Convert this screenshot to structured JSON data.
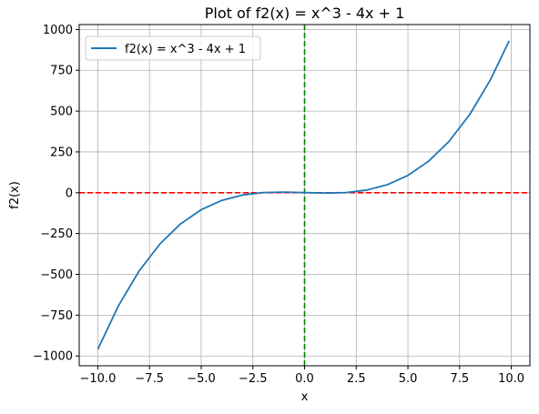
{
  "chart_data": {
    "type": "line",
    "title": "Plot of f2(x) = x^3 - 4x + 1",
    "xlabel": "x",
    "ylabel": "f2(x)",
    "xlim": [
      -10.9,
      10.9
    ],
    "ylim": [
      -1060,
      1030
    ],
    "xticks": [
      -10.0,
      -7.5,
      -5.0,
      -2.5,
      0.0,
      2.5,
      5.0,
      7.5,
      10.0
    ],
    "xtick_labels": [
      "−10.0",
      "−7.5",
      "−5.0",
      "−2.5",
      "0.0",
      "2.5",
      "5.0",
      "7.5",
      "10.0"
    ],
    "yticks": [
      -1000,
      -750,
      -500,
      -250,
      0,
      250,
      500,
      750,
      1000
    ],
    "ytick_labels": [
      "−1000",
      "−750",
      "−500",
      "−250",
      "0",
      "250",
      "500",
      "750",
      "1000"
    ],
    "grid": true,
    "legend_position": "top-left",
    "series": [
      {
        "name": "f2(x) = x^3 - 4x + 1",
        "color": "#1f77b4",
        "x": [
          -10,
          -9,
          -8,
          -7,
          -6,
          -5,
          -4,
          -3,
          -2,
          -1,
          0,
          1,
          2,
          3,
          4,
          5,
          6,
          7,
          8,
          9,
          9.9
        ],
        "y": [
          -959,
          -692,
          -479,
          -314,
          -191,
          -104,
          -47,
          -14,
          1,
          4,
          1,
          -2,
          1,
          16,
          49,
          106,
          193,
          316,
          481,
          694,
          931
        ]
      }
    ],
    "reference_lines": [
      {
        "orientation": "horizontal",
        "value": 0,
        "color": "#ff0000",
        "style": "dashed"
      },
      {
        "orientation": "vertical",
        "value": 0,
        "color": "#008000",
        "style": "dashed"
      }
    ]
  }
}
